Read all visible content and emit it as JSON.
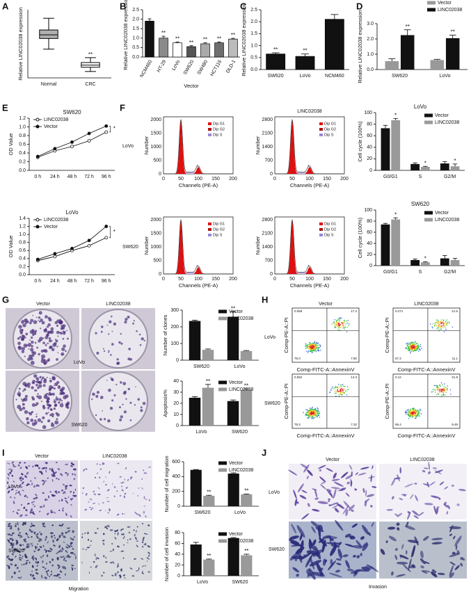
{
  "chart_data": [
    {
      "type": "box",
      "categories": [
        "Normal",
        "CRC"
      ],
      "boxes": [
        {
          "min": 1.35,
          "q1": 1.85,
          "median": 2.02,
          "q3": 2.25,
          "max": 2.8
        },
        {
          "min": 0.3,
          "q1": 0.5,
          "median": 0.6,
          "q3": 0.72,
          "max": 0.95
        }
      ],
      "colors": [
        "#b0b0b0",
        "#ffffff"
      ],
      "annotations": [
        null,
        "**"
      ],
      "ylabel": "Relative LINC02038 expression",
      "ylim": [
        0,
        3.2
      ]
    },
    {
      "type": "bar",
      "categories": [
        "NCM460",
        "HT-29",
        "LoVo",
        "SW620",
        "SW480",
        "HCT116",
        "DLD-1"
      ],
      "values": [
        1.9,
        1.0,
        0.75,
        0.55,
        0.7,
        0.75,
        0.95
      ],
      "errors": [
        0.12,
        0.1,
        0.05,
        0.05,
        0.05,
        0.05,
        0.04
      ],
      "colors": [
        "#111111",
        "#8a8a8a",
        "#ffffff",
        "#555555",
        "#aaaaaa",
        "#6e6e6e",
        "#bbbbbb"
      ],
      "annotations": [
        null,
        "**",
        "**",
        "**",
        "**",
        "**",
        "**"
      ],
      "ylabel": "Relative LINC02038 expression",
      "xlabel": "Vector",
      "x_label_rotation": -60,
      "ylim": [
        0,
        2.5
      ],
      "yticks": [
        {
          "value": 0,
          "label": "0.0"
        },
        {
          "value": 0.5,
          "label": "0.5"
        },
        {
          "value": 1,
          "label": "1.0"
        },
        {
          "value": 1.5,
          "label": "1.5"
        },
        {
          "value": 2,
          "label": "2.0"
        },
        {
          "value": 2.5,
          "label": "2.5"
        }
      ]
    },
    {
      "type": "bar",
      "categories": [
        "SW620",
        "LoVo",
        "NCM460"
      ],
      "values": [
        0.65,
        0.55,
        2.1
      ],
      "errors": [
        0.05,
        0.1,
        0.2
      ],
      "color": "#111111",
      "annotations": [
        "**",
        "**",
        null
      ],
      "ylabel": "Relative LINC02038 expression",
      "ylim": [
        0,
        2.5
      ],
      "yticks": [
        {
          "value": 0,
          "label": "0.0"
        },
        {
          "value": 0.5,
          "label": "0.5"
        },
        {
          "value": 1,
          "label": "1.0"
        },
        {
          "value": 1.5,
          "label": "1.5"
        },
        {
          "value": 2,
          "label": "2.0"
        },
        {
          "value": 2.5,
          "label": "2.5"
        }
      ]
    },
    {
      "type": "bar",
      "categories": [
        "SW620",
        "LoVo"
      ],
      "series": [
        {
          "name": "Vector",
          "color": "#999999",
          "values": [
            0.55,
            0.62
          ],
          "errors": [
            0.15,
            0.05
          ]
        },
        {
          "name": "LINC02038",
          "color": "#111111",
          "values": [
            2.25,
            2.05
          ],
          "errors": [
            0.35,
            0.2
          ],
          "annotations": [
            "**",
            "**"
          ]
        }
      ],
      "legend": "upper right",
      "ylabel": "Relative LINC02038 expression",
      "ylim": [
        0,
        3
      ],
      "yticks": [
        {
          "value": 0,
          "label": "0.0"
        },
        {
          "value": 1,
          "label": "1.0"
        },
        {
          "value": 2,
          "label": "2.0"
        },
        {
          "value": 3,
          "label": "3.0"
        }
      ]
    },
    {
      "type": "line",
      "title": "SW620",
      "categories": [
        "0 h",
        "24 h",
        "48 h",
        "72 h",
        "96 h"
      ],
      "series": [
        {
          "name": "LINC02038",
          "color": "#111111",
          "marker": "open",
          "values": [
            0.3,
            0.45,
            0.55,
            0.68,
            0.88
          ]
        },
        {
          "name": "Vector",
          "color": "#111111",
          "marker": "filled",
          "values": [
            0.32,
            0.5,
            0.65,
            0.85,
            1.02
          ]
        }
      ],
      "annotation": "*",
      "legend": "upper left",
      "ylabel": "OD Value",
      "ylim": [
        0,
        1.2
      ],
      "yticks": [
        {
          "value": 0,
          "label": "0.0"
        },
        {
          "value": 0.2,
          "label": "0.2"
        },
        {
          "value": 0.4,
          "label": "0.4"
        },
        {
          "value": 0.6,
          "label": "0.6"
        },
        {
          "value": 0.8,
          "label": "0.8"
        },
        {
          "value": 1,
          "label": "1.0"
        },
        {
          "value": 1.2,
          "label": "1.2"
        }
      ]
    },
    {
      "type": "line",
      "title": "LoVo",
      "categories": [
        "0 h",
        "24 h",
        "48 h",
        "72 h",
        "96 h"
      ],
      "series": [
        {
          "name": "LINC02038",
          "color": "#111111",
          "marker": "open",
          "values": [
            0.35,
            0.45,
            0.6,
            0.72,
            0.92
          ]
        },
        {
          "name": "Vector",
          "color": "#111111",
          "marker": "filled",
          "values": [
            0.38,
            0.52,
            0.65,
            0.85,
            1.2
          ]
        }
      ],
      "annotation": "*",
      "legend": "upper left",
      "ylabel": "OD Value",
      "ylim": [
        0,
        1.4
      ],
      "yticks": [
        {
          "value": 0,
          "label": "0.0"
        },
        {
          "value": 0.2,
          "label": "0.2"
        },
        {
          "value": 0.4,
          "label": "0.4"
        },
        {
          "value": 0.6,
          "label": "0.6"
        },
        {
          "value": 0.8,
          "label": "0.8"
        },
        {
          "value": 1,
          "label": "1.0"
        },
        {
          "value": 1.2,
          "label": "1.2"
        },
        {
          "value": 1.4,
          "label": "1.4"
        }
      ]
    },
    {
      "type": "bar",
      "title": "LoVo",
      "categories": [
        "G0/G1",
        "S",
        "G2/M"
      ],
      "series": [
        {
          "name": "Vector",
          "color": "#111111",
          "values": [
            73,
            11,
            12
          ],
          "errors": [
            5,
            2,
            3
          ]
        },
        {
          "name": "LINC02038",
          "color": "#999999",
          "values": [
            87,
            6,
            7
          ],
          "errors": [
            3,
            1,
            4
          ],
          "annotations": [
            "*",
            "*",
            "*"
          ]
        }
      ],
      "legend": "upper right",
      "ylabel": "Cell cycle (100%)",
      "ylim": [
        0,
        100
      ],
      "yticks": [
        0,
        20,
        40,
        60,
        80,
        100
      ]
    },
    {
      "type": "bar",
      "title": "SW620",
      "categories": [
        "G0/G1",
        "S",
        "G2/M"
      ],
      "series": [
        {
          "name": "Vector",
          "color": "#111111",
          "values": [
            74,
            10,
            13
          ],
          "errors": [
            2,
            2,
            5
          ]
        },
        {
          "name": "LINC02038",
          "color": "#999999",
          "values": [
            83,
            6,
            10
          ],
          "errors": [
            3,
            1,
            3
          ],
          "annotations": [
            "*",
            "*",
            null
          ]
        }
      ],
      "legend": "upper right",
      "ylabel": "Cell cycle (100%)",
      "ylim": [
        0,
        100
      ],
      "yticks": [
        0,
        20,
        40,
        60,
        80,
        100
      ]
    },
    {
      "type": "bar",
      "categories": [
        "SW620",
        "LoVo"
      ],
      "series": [
        {
          "name": "Vector",
          "color": "#111111",
          "values": [
            235,
            260
          ],
          "errors": [
            5,
            30
          ],
          "annotations": [
            null,
            "**"
          ]
        },
        {
          "name": "LINC02038",
          "color": "#999999",
          "values": [
            62,
            55
          ],
          "errors": [
            5,
            3
          ]
        }
      ],
      "legend": "upper right",
      "ylabel": "Number of clones",
      "ylim": [
        0,
        300
      ],
      "yticks": [
        0,
        100,
        200,
        300
      ]
    },
    {
      "type": "bar",
      "categories": [
        "LoVo",
        "SW620"
      ],
      "series": [
        {
          "name": "Vector",
          "color": "#111111",
          "values": [
            25,
            22
          ],
          "errors": [
            1,
            1
          ]
        },
        {
          "name": "LINC02038",
          "color": "#999999",
          "values": [
            34,
            32
          ],
          "errors": [
            3,
            1
          ],
          "annotations": [
            "**",
            "**"
          ]
        }
      ],
      "legend": "upper right",
      "ylabel": "Apoptosis%",
      "ylim": [
        0,
        40
      ],
      "yticks": [
        0,
        10,
        20,
        30,
        40
      ]
    },
    {
      "type": "bar",
      "categories": [
        "SW620",
        "LoVo"
      ],
      "series": [
        {
          "name": "Vector",
          "color": "#111111",
          "values": [
            490,
            440
          ],
          "errors": [
            5,
            10
          ]
        },
        {
          "name": "LINC02038",
          "color": "#999999",
          "values": [
            140,
            160
          ],
          "errors": [
            8,
            5
          ],
          "annotations": [
            "**",
            "**"
          ]
        }
      ],
      "legend": "upper right",
      "ylabel": "Number of cell migration",
      "ylim": [
        0,
        600
      ],
      "yticks": [
        0,
        200,
        400,
        600
      ]
    },
    {
      "type": "bar",
      "categories": [
        "LoVo",
        "SW620"
      ],
      "series": [
        {
          "name": "Vector",
          "color": "#111111",
          "values": [
            58,
            70
          ],
          "errors": [
            4,
            1
          ]
        },
        {
          "name": "LINC02038",
          "color": "#999999",
          "values": [
            30,
            38
          ],
          "errors": [
            1,
            2
          ],
          "annotations": [
            "**",
            "**"
          ]
        }
      ],
      "legend": "upper right",
      "ylabel": "Number of cell invasion",
      "ylim": [
        0,
        80
      ],
      "yticks": [
        0,
        20,
        40,
        60,
        80
      ]
    }
  ],
  "figure": {
    "letters": [
      "A",
      "B",
      "C",
      "D",
      "E",
      "F",
      "G",
      "H",
      "I",
      "J"
    ],
    "flow_cycle": {
      "column_title": "LINC02038",
      "rows": [
        "LoVo",
        "SW620"
      ],
      "ylabel": "Number",
      "xlabel": "Channels (PE-A)",
      "legend": [
        "Dip G1",
        "Dip G2",
        "Dip S"
      ],
      "xticks": [
        0,
        50,
        100,
        150,
        200
      ],
      "yticks_left": [
        0,
        500,
        1000,
        1500,
        2000
      ],
      "yticks_right": [
        0,
        700,
        1400,
        2100,
        2800
      ]
    },
    "colony": {
      "columns": [
        "Vector",
        "LINC02038"
      ],
      "rows": [
        "LoVo",
        "SW620"
      ]
    },
    "apoptosis_flow": {
      "columns": [
        "Vector",
        "LINC02038"
      ],
      "rows": [
        "LoVo",
        "SW620"
      ],
      "ylabel": "Comp-PE-A::PI",
      "xlabel": "Comp-FITC-A::AnnexinV",
      "quadrants": [
        [
          [
            "0.059",
            "17.2",
            "75.0",
            "7.80"
          ],
          [
            "0.271",
            "21.6",
            "67.2",
            "11.1"
          ]
        ],
        [
          [
            "0.062",
            "14.3",
            "78.3",
            "7.32"
          ],
          [
            "0.12",
            "21.9",
            "68.4",
            "9.49"
          ]
        ]
      ]
    },
    "migration": {
      "columns": [
        "Vector",
        "LINC02038"
      ],
      "rows": [
        "LoVo",
        "SW620"
      ],
      "caption": "Migration"
    },
    "invasion": {
      "columns": [
        "Vector",
        "LINC02038"
      ],
      "rows": [
        "LoVo",
        "SW620"
      ],
      "caption": "Invasion"
    }
  }
}
